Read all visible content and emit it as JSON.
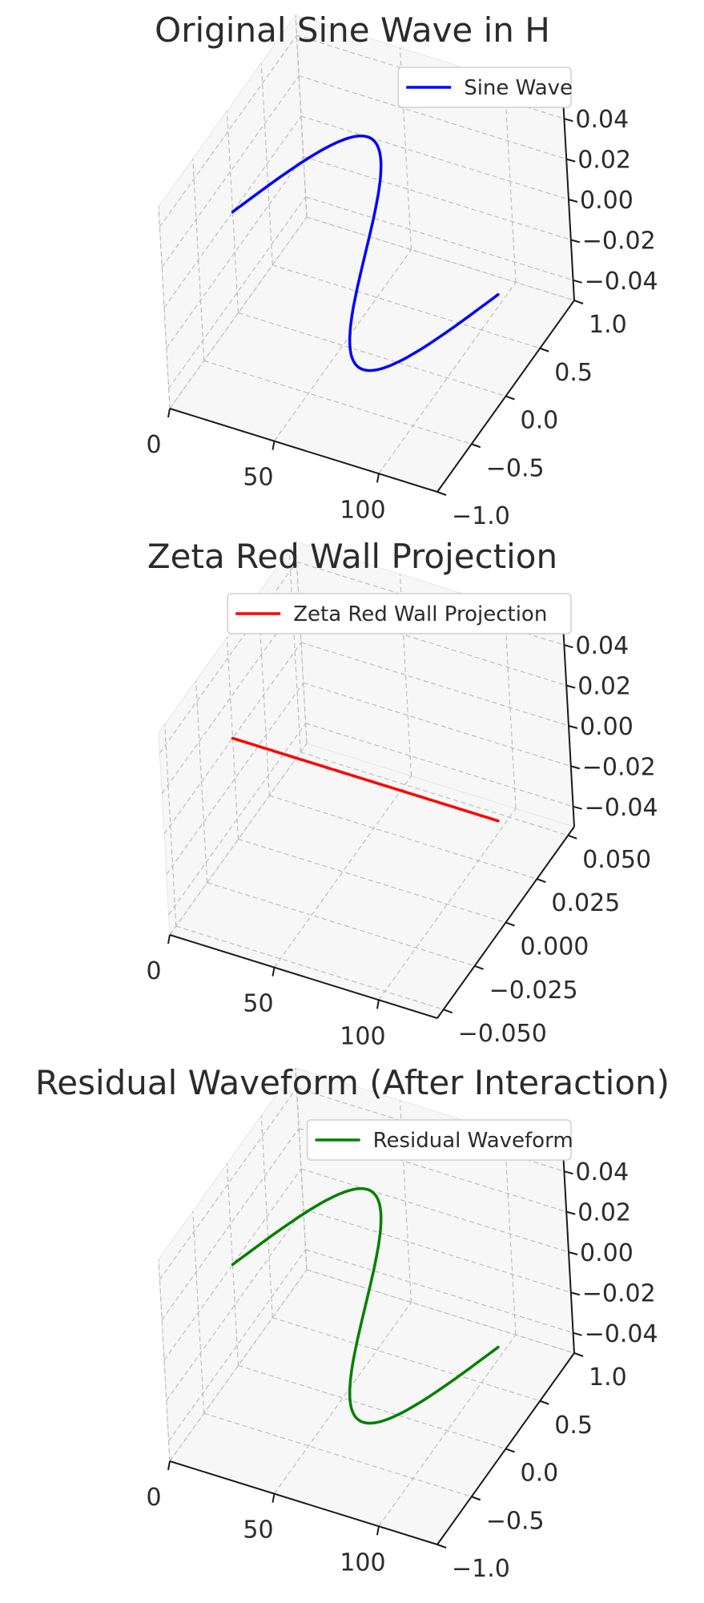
{
  "chart_data": [
    {
      "type": "line",
      "title": "Original Sine Wave in H",
      "xlabel": "",
      "ylabel": "",
      "zlabel": "",
      "xlim": [
        0,
        128
      ],
      "ylim": [
        -1,
        1
      ],
      "zlim": [
        -0.05,
        0.05
      ],
      "x_ticks": [
        "0",
        "50",
        "100"
      ],
      "y_ticks": [
        "−1.0",
        "−0.5",
        "0.0",
        "0.5",
        "1.0"
      ],
      "z_ticks": [
        "−0.04",
        "−0.02",
        "0.00",
        "0.02",
        "0.04"
      ],
      "grid": true,
      "legend": "top-right",
      "series": [
        {
          "name": "Sine Wave",
          "color": "#0000ff",
          "function": "sin",
          "x_range": [
            0,
            127
          ],
          "y_amplitude": 1.0,
          "z_value": 0.0,
          "points": 128
        }
      ]
    },
    {
      "type": "line",
      "title": "Zeta Red Wall Projection",
      "xlabel": "",
      "ylabel": "",
      "zlabel": "",
      "xlim": [
        0,
        128
      ],
      "ylim": [
        -0.055,
        0.055
      ],
      "zlim": [
        -0.05,
        0.05
      ],
      "x_ticks": [
        "0",
        "50",
        "100"
      ],
      "y_ticks": [
        "−0.050",
        "−0.025",
        "0.000",
        "0.025",
        "0.050"
      ],
      "z_ticks": [
        "−0.04",
        "−0.02",
        "0.00",
        "0.02",
        "0.04"
      ],
      "grid": true,
      "legend": "top-right",
      "series": [
        {
          "name": "Zeta Red Wall Projection",
          "color": "#ff0000",
          "function": "zero",
          "x_range": [
            0,
            127
          ],
          "y_amplitude": 0.0,
          "z_value": 0.0,
          "points": 128
        }
      ]
    },
    {
      "type": "line",
      "title": "Residual Waveform (After Interaction)",
      "xlabel": "",
      "ylabel": "",
      "zlabel": "",
      "xlim": [
        0,
        128
      ],
      "ylim": [
        -1,
        1
      ],
      "zlim": [
        -0.05,
        0.05
      ],
      "x_ticks": [
        "0",
        "50",
        "100"
      ],
      "y_ticks": [
        "−1.0",
        "−0.5",
        "0.0",
        "0.5",
        "1.0"
      ],
      "z_ticks": [
        "−0.04",
        "−0.02",
        "0.00",
        "0.02",
        "0.04"
      ],
      "grid": true,
      "legend": "top-right",
      "series": [
        {
          "name": "Residual Waveform",
          "color": "#008000",
          "function": "sin",
          "x_range": [
            0,
            127
          ],
          "y_amplitude": 1.0,
          "z_value": 0.0,
          "points": 128
        }
      ]
    }
  ]
}
